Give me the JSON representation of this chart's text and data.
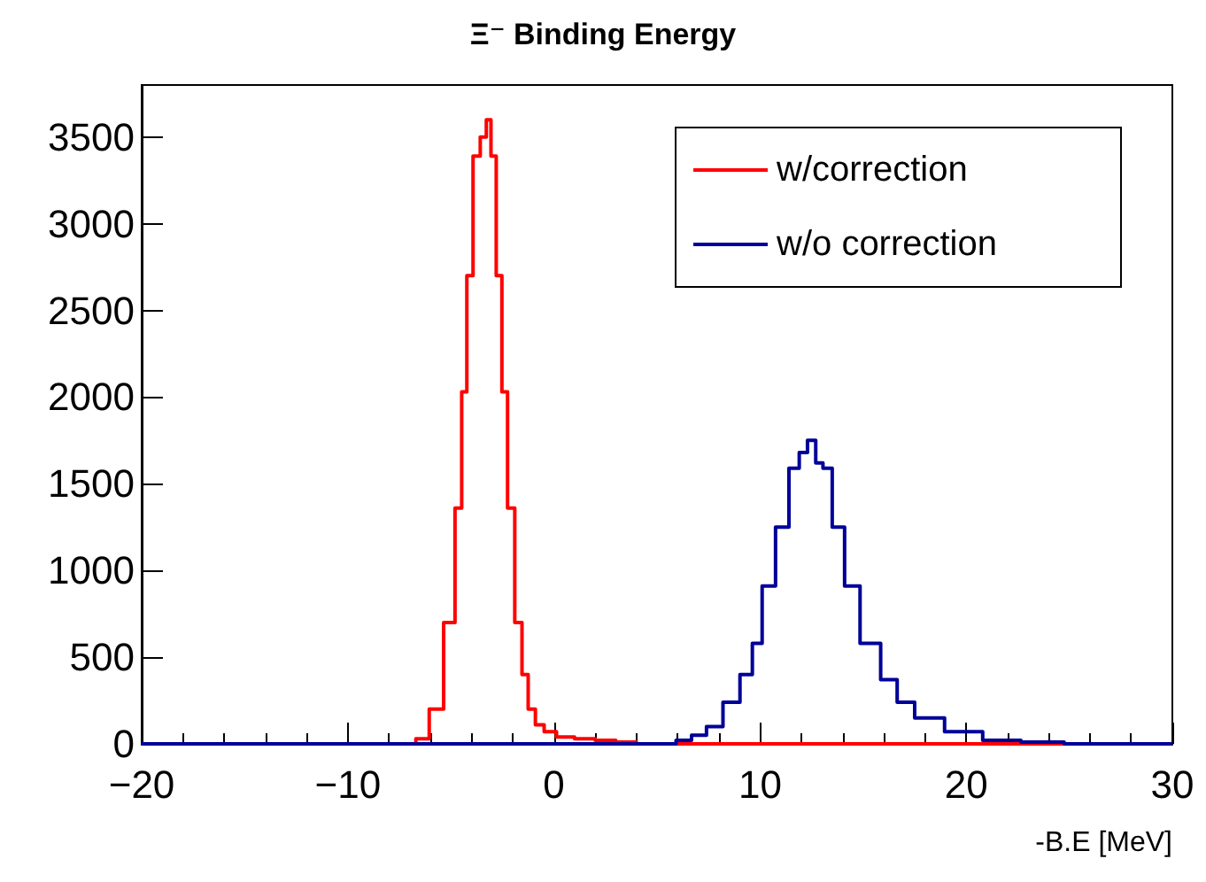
{
  "chart_data": {
    "type": "step",
    "title": "Ξ⁻ Binding Energy",
    "xlabel": "-B.E [MeV]",
    "xlim": [
      -20,
      30
    ],
    "xticks": [
      -20,
      -10,
      0,
      10,
      20,
      30
    ],
    "ylim": [
      0,
      3800
    ],
    "yticks": [
      0,
      500,
      1000,
      1500,
      2000,
      2500,
      3000,
      3500
    ],
    "grid": false,
    "legend": "top right",
    "marker": "none",
    "series": [
      {
        "name": "w/correction",
        "color": "#ff0000",
        "x": [
          -20,
          -7,
          -6.4,
          -5.7,
          -5.0,
          -4.6,
          -4.35,
          -4.1,
          -3.75,
          -3.4,
          -3.16,
          -2.95,
          -2.65,
          -2.4,
          -2.1,
          -1.7,
          -1.4,
          -1.1,
          -0.7,
          -0.25,
          0.5,
          1.5,
          2.5,
          3.5,
          4.5,
          6,
          30
        ],
        "values": [
          0,
          0,
          30,
          200,
          700,
          1360,
          2030,
          2700,
          3390,
          3500,
          3600,
          3390,
          2700,
          2030,
          1360,
          700,
          400,
          200,
          110,
          70,
          40,
          30,
          20,
          10,
          0,
          0,
          0
        ]
      },
      {
        "name": "w/o correction",
        "color": "#000099",
        "x": [
          -20,
          5.5,
          6.35,
          7.0,
          7.8,
          8.6,
          9.45,
          9.8,
          10.4,
          11.1,
          11.7,
          12.1,
          12.5,
          12.9,
          13.2,
          13.8,
          14.4,
          15.3,
          16.4,
          16.9,
          18.1,
          19.8,
          21.8,
          23.5,
          26,
          30
        ],
        "values": [
          0,
          0,
          20,
          50,
          100,
          240,
          400,
          580,
          910,
          1250,
          1590,
          1680,
          1750,
          1620,
          1590,
          1250,
          910,
          580,
          370,
          240,
          150,
          70,
          20,
          10,
          0,
          0
        ]
      }
    ]
  }
}
